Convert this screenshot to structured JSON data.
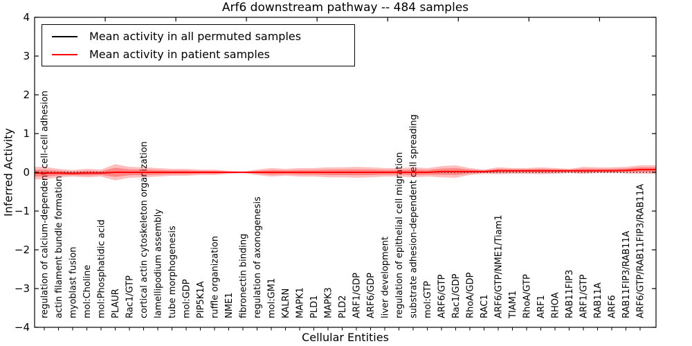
{
  "title": "Arf6 downstream pathway -- 484 samples",
  "legend": {
    "items": [
      {
        "label": "Mean activity in all permuted samples",
        "color": "#000000"
      },
      {
        "label": "Mean activity in patient samples",
        "color": "#ff0000"
      }
    ]
  },
  "axes": {
    "xlabel": "Cellular Entities",
    "ylabel": "Inferred Activity",
    "yticks": [
      4,
      3,
      2,
      1,
      0,
      -1,
      -2,
      -3,
      -4
    ],
    "ylim": [
      -4,
      4
    ]
  },
  "colors": {
    "patient_line": "#ff0000",
    "permuted_line": "#000000",
    "band_fill": "#ff0000",
    "frame": "#000000",
    "background": "#ffffff"
  },
  "chart_data": {
    "type": "line",
    "title": "Arf6 downstream pathway -- 484 samples",
    "xlabel": "Cellular Entities",
    "ylabel": "Inferred Activity",
    "ylim": [
      -4,
      4
    ],
    "grid": false,
    "legend_position": "upper left",
    "categories": [
      "regulation of calcium-dependent cell-cell adhesion",
      "actin filament bundle formation",
      "myoblast fusion",
      "mol:Choline",
      "mol:Phosphatidic acid",
      "PLAUR",
      "Rac1/GTP",
      "cortical actin cytoskeleton organization",
      "lamellipodium assembly",
      "tube morphogenesis",
      "mol:GDP",
      "PIP5K1A",
      "ruffle organization",
      "NME1",
      "fibronectin binding",
      "regulation of axonogenesis",
      "mol:GM1",
      "KALRN",
      "MAPK1",
      "PLD1",
      "MAPK3",
      "PLD2",
      "ARF1/GDP",
      "ARF6/GDP",
      "liver development",
      "regulation of epithelial cell migration",
      "substrate adhesion-dependent cell spreading",
      "mol:GTP",
      "ARF6/GTP",
      "Rac1/GDP",
      "RhoA/GDP",
      "RAC1",
      "ARF6/GTP/NME1/Tiam1",
      "TIAM1",
      "RhoA/GTP",
      "ARF1",
      "RHOA",
      "RAB11FIP3",
      "ARF1/GTP",
      "RAB11A",
      "ARF6",
      "RAB11FIP3/RAB11A",
      "ARF6/GTP/RAB11FIP3/RAB11A"
    ],
    "series": [
      {
        "name": "Mean activity in all permuted samples",
        "color": "#000000",
        "style": "dotted",
        "values": [
          0,
          0,
          0,
          0,
          0,
          0,
          0,
          0,
          0,
          0,
          0,
          0,
          0,
          0,
          0,
          0,
          0,
          0,
          0,
          0,
          0,
          0,
          0,
          0,
          0,
          0,
          0,
          0,
          0,
          0,
          0,
          0,
          0,
          0,
          0,
          0,
          0,
          0,
          0,
          0,
          0,
          0,
          0
        ]
      },
      {
        "name": "Mean activity in patient samples",
        "color": "#ff0000",
        "style": "solid",
        "values": [
          -0.02,
          -0.02,
          -0.03,
          -0.02,
          -0.02,
          0,
          0,
          0,
          0,
          0,
          0,
          0,
          0,
          0,
          0,
          0,
          0,
          0,
          0,
          0,
          0,
          0,
          0,
          0,
          0,
          0,
          0,
          0,
          0.02,
          0.02,
          0.02,
          0.02,
          0.04,
          0.04,
          0.04,
          0.04,
          0.04,
          0.04,
          0.04,
          0.04,
          0.04,
          0.05,
          0.07
        ]
      }
    ],
    "band": {
      "name": "patient activity spread",
      "color": "#ff0000",
      "alpha": 0.27,
      "upper": [
        0.14,
        0.09,
        0.06,
        0.09,
        0.07,
        0.21,
        0.14,
        0.13,
        0.11,
        0.09,
        0.09,
        0.07,
        0.07,
        0.04,
        0.02,
        0.07,
        0.11,
        0.09,
        0.11,
        0.11,
        0.13,
        0.13,
        0.14,
        0.13,
        0.11,
        0.11,
        0.13,
        0.11,
        0.16,
        0.18,
        0.11,
        0.07,
        0.13,
        0.11,
        0.11,
        0.13,
        0.11,
        0.09,
        0.14,
        0.13,
        0.13,
        0.14,
        0.18
      ],
      "lower": [
        -0.18,
        -0.13,
        -0.11,
        -0.13,
        -0.11,
        -0.21,
        -0.14,
        -0.13,
        -0.11,
        -0.09,
        -0.09,
        -0.07,
        -0.07,
        -0.04,
        -0.02,
        -0.07,
        -0.11,
        -0.09,
        -0.11,
        -0.11,
        -0.13,
        -0.13,
        -0.14,
        -0.13,
        -0.11,
        -0.11,
        -0.13,
        -0.11,
        -0.13,
        -0.14,
        -0.07,
        -0.04,
        -0.05,
        -0.04,
        -0.04,
        -0.05,
        -0.04,
        -0.02,
        -0.04,
        -0.02,
        -0.02,
        -0.03,
        -0.04
      ]
    }
  }
}
